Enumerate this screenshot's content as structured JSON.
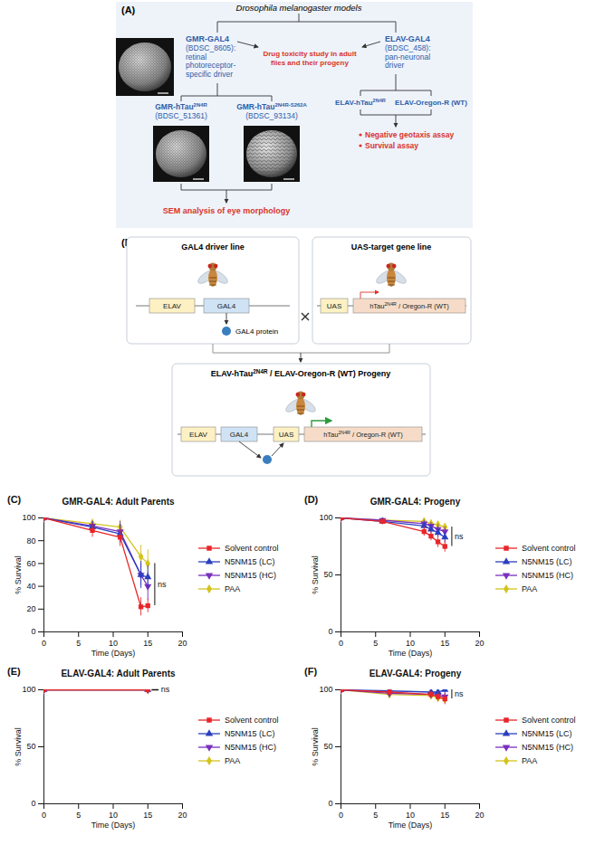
{
  "diagram_a": {
    "panel_label": "(A)",
    "title": "Drosophila melanogaster models",
    "gmr_driver": {
      "name": "GMR-GAL4",
      "lines": [
        "(BDSC_8605):",
        "retinal",
        "photoreceptor-",
        "specific driver"
      ]
    },
    "elav_driver": {
      "name": "ELAV-GAL4",
      "lines": [
        "(BDSC_458):",
        "pan-neuronal",
        "driver"
      ]
    },
    "center": [
      "Drug toxicity study in adult",
      "flies and their progeny"
    ],
    "gmr_lines": [
      {
        "parts": [
          {
            "t": "GMR-hTau"
          },
          {
            "sup": "2N4R"
          }
        ],
        "id": "(BDSC_51361)"
      },
      {
        "parts": [
          {
            "t": "GMR-hTau"
          },
          {
            "sup": "2N4R-S262A"
          }
        ],
        "id": "(BDSC_93134)"
      }
    ],
    "gmr_assay": "SEM analysis of eye morphology",
    "elav_lines": [
      {
        "parts": [
          {
            "t": "ELAV-hTau"
          },
          {
            "sup": "2N4R"
          }
        ]
      },
      {
        "parts": [
          {
            "t": "ELAV-Oregon-R (WT)"
          }
        ]
      }
    ],
    "elav_assays": [
      "Negative geotaxis assay",
      "Survival assay"
    ]
  },
  "diagram_b": {
    "panel_label": "(B)",
    "driver_box": {
      "title": "GAL4 driver line",
      "promoter": "ELAV",
      "gene": "GAL4",
      "protein": "GAL4 protein"
    },
    "target_box": {
      "title": "UAS-target gene line",
      "promoter": "UAS",
      "gene": [
        {
          "t": "hTau"
        },
        {
          "sup": "2N4R"
        },
        {
          "t": " / Oregon-R (WT)"
        }
      ]
    },
    "progeny_box": {
      "title": [
        {
          "t": "ELAV-hTau"
        },
        {
          "sup": "2N4R"
        },
        {
          "t": " / ELAV-Oregon-R (WT) Progeny"
        }
      ],
      "promoter": "ELAV",
      "gene": "GAL4",
      "target_promoter": "UAS",
      "target_gene": [
        {
          "t": "hTau"
        },
        {
          "sup": "2N4R"
        },
        {
          "t": " / Oregon-R (WT)"
        }
      ]
    }
  },
  "chart_data": [
    {
      "type": "line",
      "panel_label": "(C)",
      "title": "GMR-GAL4: Adult Parents",
      "xlabel": "Time (Days)",
      "ylabel": "% Survival",
      "x": [
        0,
        7,
        11,
        14,
        15
      ],
      "xlim": [
        0,
        20
      ],
      "xticks": [
        0,
        5,
        10,
        15,
        20
      ],
      "ylim": [
        0,
        100
      ],
      "yticks": [
        0,
        20,
        40,
        60,
        80,
        100
      ],
      "legend": "right",
      "annotations": [
        "ns"
      ],
      "series": [
        {
          "name": "Solvent control",
          "color": "#e8262a",
          "marker": "square",
          "values": [
            100,
            89,
            83,
            22,
            23
          ],
          "errors": [
            0,
            6,
            8,
            8,
            6
          ]
        },
        {
          "name": "N5NM15 (LC)",
          "color": "#2a3fbf",
          "marker": "triangle",
          "values": [
            100,
            92,
            86,
            50,
            48
          ],
          "errors": [
            0,
            5,
            8,
            12,
            10
          ]
        },
        {
          "name": "N5NM15 (HC)",
          "color": "#7b2fbe",
          "marker": "triangle-down",
          "values": [
            100,
            93,
            88,
            50,
            40
          ],
          "errors": [
            0,
            4,
            9,
            10,
            12
          ]
        },
        {
          "name": "PAA",
          "color": "#d4c31c",
          "marker": "diamond",
          "values": [
            100,
            95,
            92,
            66,
            60
          ],
          "errors": [
            0,
            4,
            6,
            10,
            12
          ]
        }
      ]
    },
    {
      "type": "line",
      "panel_label": "(D)",
      "title": "GMR-GAL4: Progeny",
      "xlabel": "Time (Days)",
      "ylabel": "% Survival",
      "x": [
        0,
        6,
        12,
        13,
        14,
        15
      ],
      "xlim": [
        0,
        20
      ],
      "xticks": [
        0,
        5,
        10,
        15,
        20
      ],
      "ylim": [
        0,
        100
      ],
      "yticks": [
        0,
        50,
        100
      ],
      "legend": "right",
      "annotations": [
        "ns"
      ],
      "series": [
        {
          "name": "Solvent control",
          "color": "#e8262a",
          "marker": "square",
          "values": [
            100,
            97,
            88,
            84,
            79,
            75
          ],
          "errors": [
            0,
            2,
            4,
            4,
            5,
            5
          ]
        },
        {
          "name": "N5NM15 (LC)",
          "color": "#2a3fbf",
          "marker": "triangle",
          "values": [
            100,
            97,
            93,
            90,
            87,
            83
          ],
          "errors": [
            0,
            2,
            3,
            4,
            4,
            5
          ]
        },
        {
          "name": "N5NM15 (HC)",
          "color": "#7b2fbe",
          "marker": "triangle-down",
          "values": [
            100,
            98,
            95,
            93,
            90,
            88
          ],
          "errors": [
            0,
            2,
            3,
            3,
            4,
            4
          ]
        },
        {
          "name": "PAA",
          "color": "#d4c31c",
          "marker": "diamond",
          "values": [
            100,
            98,
            97,
            95,
            94,
            92
          ],
          "errors": [
            0,
            1,
            3,
            3,
            3,
            3
          ]
        }
      ]
    },
    {
      "type": "line",
      "panel_label": "(E)",
      "title": "ELAV-GAL4: Adult Parents",
      "xlabel": "Time (Days)",
      "ylabel": "% Survival",
      "x": [
        0,
        15
      ],
      "xlim": [
        0,
        20
      ],
      "xticks": [
        0,
        5,
        10,
        15,
        20
      ],
      "ylim": [
        0,
        100
      ],
      "yticks": [
        0,
        50,
        100
      ],
      "legend": "right",
      "annotations": [
        "ns"
      ],
      "series": [
        {
          "name": "Solvent control",
          "color": "#e8262a",
          "marker": "square",
          "values": [
            100,
            100
          ],
          "errors": [
            0,
            0
          ]
        },
        {
          "name": "N5NM15 (LC)",
          "color": "#2a3fbf",
          "marker": "triangle",
          "values": [
            100,
            100
          ],
          "errors": [
            0,
            0
          ]
        },
        {
          "name": "N5NM15 (HC)",
          "color": "#7b2fbe",
          "marker": "triangle-down",
          "values": [
            100,
            100
          ],
          "errors": [
            0,
            0
          ]
        },
        {
          "name": "PAA",
          "color": "#d4c31c",
          "marker": "diamond",
          "values": [
            100,
            100
          ],
          "errors": [
            0,
            0
          ]
        }
      ]
    },
    {
      "type": "line",
      "panel_label": "(F)",
      "title": "ELAV-GAL4: Progeny",
      "xlabel": "Time (Days)",
      "ylabel": "% Survival",
      "x": [
        0,
        7,
        13,
        14,
        15
      ],
      "xlim": [
        0,
        20
      ],
      "xticks": [
        0,
        5,
        10,
        15,
        20
      ],
      "ylim": [
        0,
        100
      ],
      "yticks": [
        0,
        50,
        100
      ],
      "legend": "right",
      "annotations": [
        "ns"
      ],
      "series": [
        {
          "name": "Solvent control",
          "color": "#e8262a",
          "marker": "square",
          "values": [
            100,
            98,
            96,
            94,
            92
          ],
          "errors": [
            0,
            2,
            3,
            4,
            5
          ]
        },
        {
          "name": "N5NM15 (LC)",
          "color": "#2a3fbf",
          "marker": "triangle",
          "values": [
            100,
            99,
            98,
            98,
            100
          ],
          "errors": [
            0,
            1,
            2,
            2,
            2
          ]
        },
        {
          "name": "N5NM15 (HC)",
          "color": "#7b2fbe",
          "marker": "triangle-down",
          "values": [
            100,
            97,
            96,
            95,
            94
          ],
          "errors": [
            0,
            2,
            3,
            3,
            4
          ]
        },
        {
          "name": "PAA",
          "color": "#d4c31c",
          "marker": "diamond",
          "values": [
            100,
            96,
            95,
            93,
            92
          ],
          "errors": [
            0,
            2,
            3,
            3,
            4
          ]
        }
      ]
    }
  ]
}
